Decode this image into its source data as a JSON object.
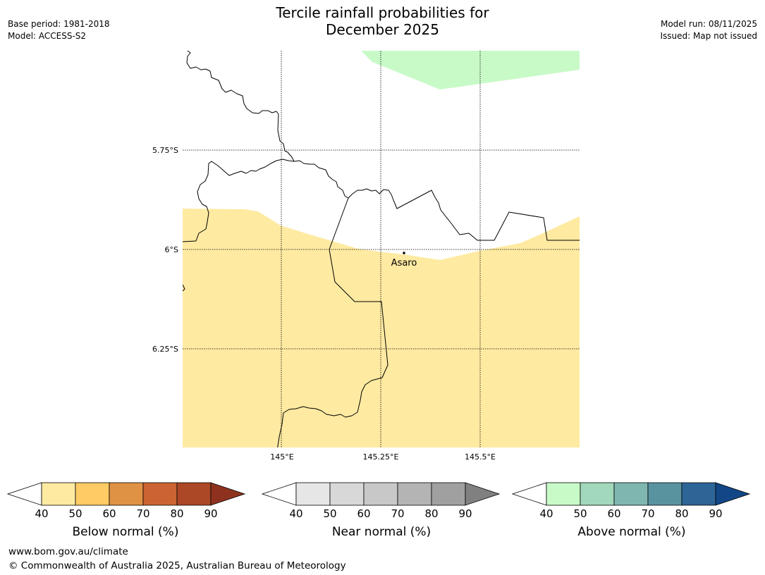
{
  "title": {
    "line1": "Tercile rainfall probabilities for",
    "line2": "December 2025"
  },
  "meta_left": {
    "base_period": "Base period: 1981-2018",
    "model": "Model: ACCESS-S2"
  },
  "meta_right": {
    "model_run": "Model run: 08/11/2025",
    "issued": "Issued: Map not issued"
  },
  "map": {
    "lat_labels": [
      "5.75°S",
      "6°S",
      "6.25°S"
    ],
    "lon_labels": [
      "145°E",
      "145.25°E",
      "145.5°E"
    ],
    "place": "Asaro",
    "land_color": "#ffffff",
    "below_fill_color": "#feeaa1",
    "above_fill_color": "#c8fac8"
  },
  "colorbars": [
    {
      "label": "Below normal (%)",
      "ticks": [
        "40",
        "50",
        "60",
        "70",
        "80",
        "90"
      ],
      "colors": [
        "#feeaa1",
        "#fecb64",
        "#e09244",
        "#cb6432",
        "#ac4826",
        "#8e321f"
      ]
    },
    {
      "label": "Near normal (%)",
      "ticks": [
        "40",
        "50",
        "60",
        "70",
        "80",
        "90"
      ],
      "colors": [
        "#e6e6e6",
        "#d8d8d8",
        "#c8c8c8",
        "#b4b4b4",
        "#a0a0a0",
        "#808080"
      ]
    },
    {
      "label": "Above normal (%)",
      "ticks": [
        "40",
        "50",
        "60",
        "70",
        "80",
        "90"
      ],
      "colors": [
        "#c8fac8",
        "#a2d8bb",
        "#7fb6b0",
        "#5a93a0",
        "#2e6597",
        "#124687"
      ]
    }
  ],
  "footer": {
    "url": "www.bom.gov.au/climate",
    "copyright": "© Commonwealth of Australia 2025, Australian Bureau of Meteorology"
  }
}
